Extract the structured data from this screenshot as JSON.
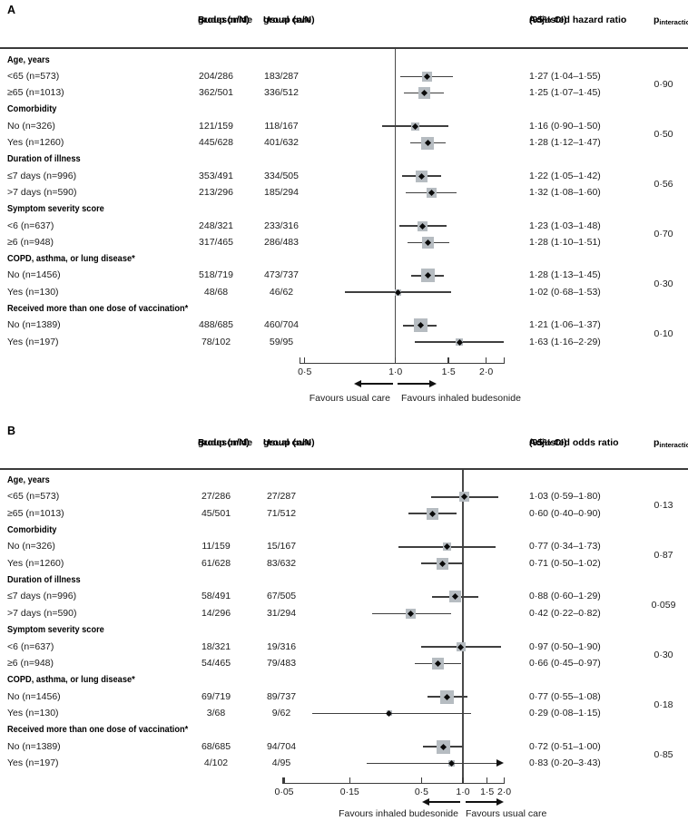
{
  "chart_data": {
    "type": "forest",
    "scale": "log",
    "colors": {
      "marker_square": "#b6bcc1",
      "marker_dot": "#0a0a0a",
      "ci_line": "#3f3f3f",
      "axis": "#3b3b3b",
      "text": "#1b1b1b"
    },
    "panels": [
      {
        "label": "A",
        "col_headers": {
          "budesonide": [
            "Budesonide",
            "group (n/N)"
          ],
          "usual": [
            "Usual care",
            "group (n/N)"
          ],
          "effect": [
            "Adjusted hazard ratio",
            "(95% CI)"
          ],
          "p_main": "p",
          "p_sub": "interaction"
        },
        "ref_line": 1.0,
        "axis_ticks": [
          {
            "v": 0.5,
            "label": "0·5"
          },
          {
            "v": 1.0,
            "label": "1·0"
          },
          {
            "v": 1.5,
            "label": "1·5"
          },
          {
            "v": 2.0,
            "label": "2·0"
          }
        ],
        "favours_left": "Favours usual care",
        "favours_right": "Favours inhaled budesonide",
        "groups": [
          {
            "label": "Age, years",
            "p": "0·90",
            "items": [
              {
                "label": "<65 (n=573)",
                "budesonide": "204/286",
                "usual": "183/287",
                "est": 1.27,
                "lo": 1.04,
                "hi": 1.55,
                "ci_text": "1·27 (1·04–1·55)",
                "sq": 11
              },
              {
                "label": "≥65 (n=1013)",
                "budesonide": "362/501",
                "usual": "336/512",
                "est": 1.25,
                "lo": 1.07,
                "hi": 1.45,
                "ci_text": "1·25 (1·07–1·45)",
                "sq": 13
              }
            ]
          },
          {
            "label": "Comorbidity",
            "p": "0·50",
            "items": [
              {
                "label": "No (n=326)",
                "budesonide": "121/159",
                "usual": "118/167",
                "est": 1.16,
                "lo": 0.9,
                "hi": 1.5,
                "ci_text": "1·16 (0·90–1·50)",
                "sq": 9
              },
              {
                "label": "Yes (n=1260)",
                "budesonide": "445/628",
                "usual": "401/632",
                "est": 1.28,
                "lo": 1.12,
                "hi": 1.47,
                "ci_text": "1·28 (1·12–1·47)",
                "sq": 14
              }
            ]
          },
          {
            "label": "Duration of illness",
            "p": "0·56",
            "items": [
              {
                "label": "≤7 days (n=996)",
                "budesonide": "353/491",
                "usual": "334/505",
                "est": 1.22,
                "lo": 1.05,
                "hi": 1.42,
                "ci_text": "1·22 (1·05–1·42)",
                "sq": 13
              },
              {
                "label": ">7 days (n=590)",
                "budesonide": "213/296",
                "usual": "185/294",
                "est": 1.32,
                "lo": 1.08,
                "hi": 1.6,
                "ci_text": "1·32 (1·08–1·60)",
                "sq": 11
              }
            ]
          },
          {
            "label": "Symptom severity score",
            "p": "0·70",
            "items": [
              {
                "label": "<6 (n=637)",
                "budesonide": "248/321",
                "usual": "233/316",
                "est": 1.23,
                "lo": 1.03,
                "hi": 1.48,
                "ci_text": "1·23 (1·03–1·48)",
                "sq": 11
              },
              {
                "label": "≥6 (n=948)",
                "budesonide": "317/465",
                "usual": "286/483",
                "est": 1.28,
                "lo": 1.1,
                "hi": 1.51,
                "ci_text": "1·28 (1·10–1·51)",
                "sq": 13
              }
            ]
          },
          {
            "label": "COPD, asthma, or lung disease*",
            "p": "0·30",
            "items": [
              {
                "label": "No (n=1456)",
                "budesonide": "518/719",
                "usual": "473/737",
                "est": 1.28,
                "lo": 1.13,
                "hi": 1.45,
                "ci_text": "1·28 (1·13–1·45)",
                "sq": 15
              },
              {
                "label": "Yes (n=130)",
                "budesonide": "48/68",
                "usual": "46/62",
                "est": 1.02,
                "lo": 0.68,
                "hi": 1.53,
                "ci_text": "1·02 (0·68–1·53)",
                "sq": 7
              }
            ]
          },
          {
            "label": "Received more than one dose of vaccination*",
            "p": "0·10",
            "items": [
              {
                "label": "No (n=1389)",
                "budesonide": "488/685",
                "usual": "460/704",
                "est": 1.21,
                "lo": 1.06,
                "hi": 1.37,
                "ci_text": "1·21 (1·06–1·37)",
                "sq": 15
              },
              {
                "label": "Yes (n=197)",
                "budesonide": "78/102",
                "usual": "59/95",
                "est": 1.63,
                "lo": 1.16,
                "hi": 2.29,
                "ci_text": "1·63 (1·16–2·29)",
                "sq": 8
              }
            ]
          }
        ]
      },
      {
        "label": "B",
        "col_headers": {
          "budesonide": [
            "Budesonide",
            "group (n/N)"
          ],
          "usual": [
            "Usual care",
            "group (n/N)"
          ],
          "effect": [
            "Adjusted odds ratio",
            "(95% CI)"
          ],
          "p_main": "p",
          "p_sub": "interaction"
        },
        "ref_line": 1.0,
        "axis_ticks": [
          {
            "v": 0.05,
            "label": "0·05"
          },
          {
            "v": 0.15,
            "label": "0·15"
          },
          {
            "v": 0.5,
            "label": "0·5"
          },
          {
            "v": 1.0,
            "label": "1·0"
          },
          {
            "v": 1.5,
            "label": "1·5"
          },
          {
            "v": 2.0,
            "label": "2·0"
          }
        ],
        "favours_left": "Favours inhaled budesonide",
        "favours_right": "Favours usual care",
        "groups": [
          {
            "label": "Age, years",
            "p": "0·13",
            "items": [
              {
                "label": "<65 (n=573)",
                "budesonide": "27/286",
                "usual": "27/287",
                "est": 1.03,
                "lo": 0.59,
                "hi": 1.8,
                "ci_text": "1·03 (0·59–1·80)",
                "sq": 11
              },
              {
                "label": "≥65 (n=1013)",
                "budesonide": "45/501",
                "usual": "71/512",
                "est": 0.6,
                "lo": 0.4,
                "hi": 0.9,
                "ci_text": "0·60 (0·40–0·90)",
                "sq": 13
              }
            ]
          },
          {
            "label": "Comorbidity",
            "p": "0·87",
            "items": [
              {
                "label": "No (n=326)",
                "budesonide": "11/159",
                "usual": "15/167",
                "est": 0.77,
                "lo": 0.34,
                "hi": 1.73,
                "ci_text": "0·77 (0·34–1·73)",
                "sq": 9
              },
              {
                "label": "Yes (n=1260)",
                "budesonide": "61/628",
                "usual": "83/632",
                "est": 0.71,
                "lo": 0.5,
                "hi": 1.02,
                "ci_text": "0·71 (0·50–1·02)",
                "sq": 13
              }
            ]
          },
          {
            "label": "Duration of illness",
            "p": "0·059",
            "items": [
              {
                "label": "≤7 days (n=996)",
                "budesonide": "58/491",
                "usual": "67/505",
                "est": 0.88,
                "lo": 0.6,
                "hi": 1.29,
                "ci_text": "0·88 (0·60–1·29)",
                "sq": 13
              },
              {
                "label": ">7 days (n=590)",
                "budesonide": "14/296",
                "usual": "31/294",
                "est": 0.42,
                "lo": 0.22,
                "hi": 0.82,
                "ci_text": "0·42 (0·22–0·82)",
                "sq": 11
              }
            ]
          },
          {
            "label": "Symptom severity score",
            "p": "0·30",
            "items": [
              {
                "label": "<6 (n=637)",
                "budesonide": "18/321",
                "usual": "19/316",
                "est": 0.97,
                "lo": 0.5,
                "hi": 1.9,
                "ci_text": "0·97 (0·50–1·90)",
                "sq": 10
              },
              {
                "label": "≥6 (n=948)",
                "budesonide": "54/465",
                "usual": "79/483",
                "est": 0.66,
                "lo": 0.45,
                "hi": 0.97,
                "ci_text": "0·66 (0·45–0·97)",
                "sq": 13
              }
            ]
          },
          {
            "label": "COPD, asthma, or lung disease*",
            "p": "0·18",
            "items": [
              {
                "label": "No (n=1456)",
                "budesonide": "69/719",
                "usual": "89/737",
                "est": 0.77,
                "lo": 0.55,
                "hi": 1.08,
                "ci_text": "0·77 (0·55–1·08)",
                "sq": 15
              },
              {
                "label": "Yes (n=130)",
                "budesonide": "3/68",
                "usual": "9/62",
                "est": 0.29,
                "lo": 0.08,
                "hi": 1.15,
                "ci_text": "0·29 (0·08–1·15)",
                "sq": 6
              }
            ]
          },
          {
            "label": "Received more than one dose of vaccination*",
            "p": "0·85",
            "items": [
              {
                "label": "No (n=1389)",
                "budesonide": "68/685",
                "usual": "94/704",
                "est": 0.72,
                "lo": 0.51,
                "hi": 1.0,
                "ci_text": "0·72 (0·51–1·00)",
                "sq": 15
              },
              {
                "label": "Yes (n=197)",
                "budesonide": "4/102",
                "usual": "4/95",
                "est": 0.83,
                "lo": 0.2,
                "hi": 3.43,
                "ci_text": "0·83 (0·20–3·43)",
                "sq": 7,
                "clip_hi": true
              }
            ]
          }
        ]
      }
    ]
  }
}
